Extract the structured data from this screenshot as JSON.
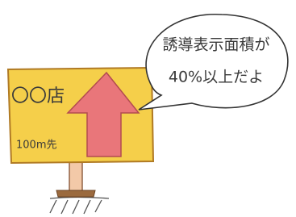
{
  "sign": {
    "store": "〇〇店",
    "distance": "100m先"
  },
  "speech": {
    "lines": [
      "誘導表示面積が",
      "40%以上だよ"
    ]
  }
}
